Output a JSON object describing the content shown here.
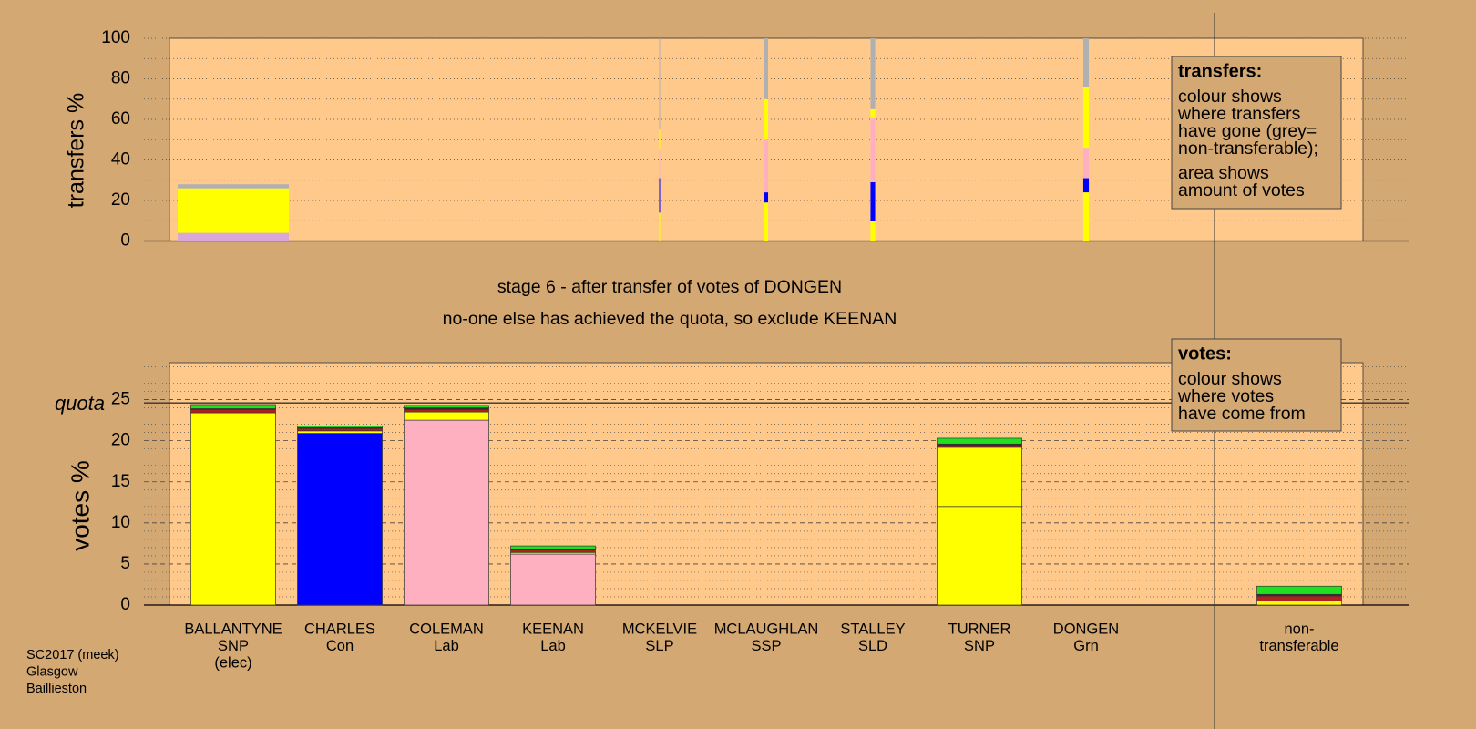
{
  "chart_data": [
    {
      "type": "bar",
      "stacked": true,
      "y_label": "transfers %",
      "ylim": [
        0,
        100
      ],
      "yticks": [
        0,
        20,
        40,
        60,
        80,
        100
      ],
      "minor_yticks": [
        10,
        30,
        50,
        70,
        90
      ],
      "grid": true,
      "widths": [
        24,
        null,
        null,
        null,
        0.2,
        0.8,
        1,
        null,
        1.2,
        null,
        null
      ],
      "series": [
        {
          "color": "#d8a8d8",
          "values": [
            4,
            null,
            null,
            null,
            0,
            0,
            0,
            null,
            0,
            null,
            null
          ]
        },
        {
          "color": "#ffff00",
          "values": [
            22,
            null,
            null,
            null,
            14,
            19,
            10,
            null,
            24,
            null,
            null
          ]
        },
        {
          "color": "#0000ff",
          "values": [
            0,
            null,
            null,
            null,
            17,
            5,
            19,
            null,
            7,
            null,
            null
          ]
        },
        {
          "color": "#ffb0c0",
          "values": [
            0,
            null,
            null,
            null,
            14,
            26,
            32,
            null,
            15,
            null,
            null
          ]
        },
        {
          "color": "#ffff00",
          "values": [
            0,
            null,
            null,
            null,
            10,
            20,
            4,
            null,
            30,
            null,
            null
          ]
        },
        {
          "color": "#b0b0b0",
          "values": [
            2,
            null,
            null,
            null,
            45,
            30,
            35,
            null,
            24,
            null,
            null
          ]
        }
      ]
    },
    {
      "type": "bar",
      "stacked": true,
      "y_label": "votes %",
      "ylim": [
        0,
        29.5
      ],
      "yticks": [
        0,
        5,
        10,
        15,
        20,
        25
      ],
      "minor_yticks": [
        1,
        2,
        3,
        4,
        6,
        7,
        8,
        9,
        11,
        12,
        13,
        14,
        16,
        17,
        18,
        19,
        21,
        22,
        23,
        24,
        26,
        27,
        28,
        29
      ],
      "grid": true,
      "quota": 24.6,
      "quota_label": "quota",
      "categories": [
        [
          "BALLANTYNE",
          "SNP",
          "(elec)"
        ],
        [
          "CHARLES",
          "Con"
        ],
        [
          "COLEMAN",
          "Lab"
        ],
        [
          "KEENAN",
          "Lab"
        ],
        [
          "MCKELVIE",
          "SLP"
        ],
        [
          "MCLAUGHLAN",
          "SSP"
        ],
        [
          "STALLEY",
          "SLD"
        ],
        [
          "TURNER",
          "SNP"
        ],
        [
          "DONGEN",
          "Grn"
        ],
        null,
        [
          "non-",
          "transferable"
        ]
      ],
      "series": [
        {
          "colors": [
            "#ffff00",
            "#0000ff",
            "#ffb0c0",
            "#ffb0c0",
            "#ffff00",
            "#ffff00",
            "#ffff00",
            "#ffff00",
            "#20e020",
            null,
            "#ffff00"
          ],
          "values": [
            23.4,
            20.9,
            22.5,
            6.2,
            0,
            0,
            0,
            12.0,
            0,
            null,
            0.5
          ]
        },
        {
          "color": "#ffff00",
          "values": [
            0,
            0.3,
            1.0,
            0.2,
            0,
            0,
            0,
            7.2,
            0,
            null,
            0
          ]
        },
        {
          "color": "#b02020",
          "values": [
            0.4,
            0.3,
            0.3,
            0.3,
            0,
            0,
            0,
            0.2,
            0,
            null,
            0.6
          ]
        },
        {
          "color": "#303030",
          "values": [
            0.1,
            0.1,
            0.2,
            0.1,
            0,
            0,
            0,
            0.2,
            0,
            null,
            0.2
          ]
        },
        {
          "color": "#20e020",
          "values": [
            0.5,
            0.2,
            0.3,
            0.4,
            0,
            0,
            0,
            0.7,
            0,
            null,
            1.0
          ]
        }
      ]
    }
  ],
  "titles": [
    "stage 6 - after transfer of votes of DONGEN",
    "no-one else has achieved the quota, so exclude KEENAN"
  ],
  "legends": [
    {
      "title": "transfers:",
      "lines": [
        "colour shows",
        "where transfers",
        "have gone (grey=",
        "non-transferable);",
        "area shows",
        "amount of votes"
      ]
    },
    {
      "title": "votes:",
      "lines": [
        "colour shows",
        "where votes",
        "have come from"
      ]
    }
  ],
  "footer": [
    "SC2017 (meek)",
    "Glasgow",
    "Baillieston"
  ]
}
